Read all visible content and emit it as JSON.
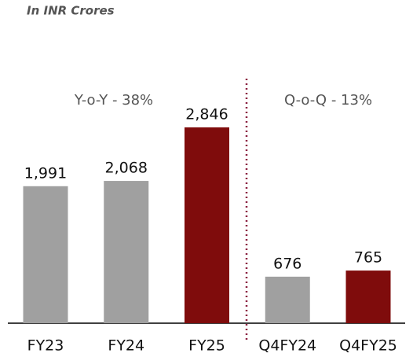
{
  "chart_data": {
    "type": "bar",
    "subtitle": "In INR Crores",
    "categories": [
      "FY23",
      "FY24",
      "FY25",
      "Q4FY24",
      "Q4FY25"
    ],
    "values": [
      1991,
      2068,
      2846,
      676,
      765
    ],
    "value_labels": [
      "1,991",
      "2,068",
      "2,846",
      "676",
      "765"
    ],
    "colors": [
      "#a0a0a0",
      "#a0a0a0",
      "#7f0c0c",
      "#a0a0a0",
      "#7f0c0c"
    ],
    "annotations": [
      "Y-o-Y - 38%",
      "Q-o-Q - 13%"
    ]
  }
}
